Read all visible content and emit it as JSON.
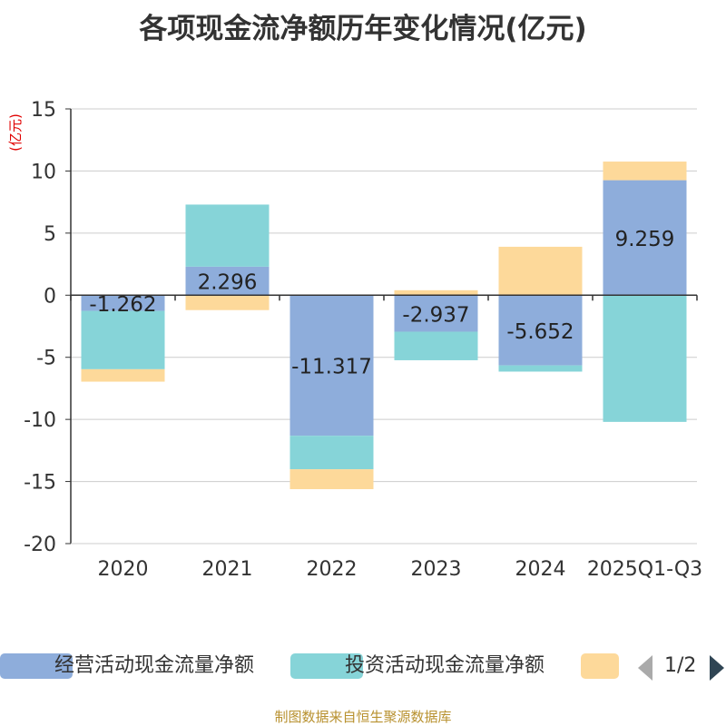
{
  "title": "各项现金流净额历年变化情况(亿元)",
  "source": "制图数据来自恒生聚源数据库",
  "pager": "1/2",
  "colors": {
    "operating": "#8eaddb",
    "investing": "#86d4d8",
    "financing": "#fdd99a",
    "grid": "#cccccc",
    "axis": "#333333",
    "text": "#333333",
    "unit": "#e00000",
    "pager_active": "#2f4554",
    "pager_inactive": "#aaaaaa"
  },
  "chart_data": {
    "type": "bar",
    "stacked": true,
    "title": "各项现金流净额历年变化情况(亿元)",
    "ylabel": "(亿元)",
    "ylim": [
      -20,
      15
    ],
    "yticks": [
      15,
      10,
      5,
      0,
      -5,
      -10,
      -15,
      -20
    ],
    "categories": [
      "2020",
      "2021",
      "2022",
      "2023",
      "2024",
      "2025Q1-Q3"
    ],
    "series": [
      {
        "name": "经营活动现金流量净额",
        "key": "operating",
        "values": [
          -1.262,
          2.296,
          -11.317,
          -2.937,
          -5.652,
          9.259
        ],
        "labels": [
          "-1.262",
          "2.296",
          "-11.317",
          "-2.937",
          "-5.652",
          "9.259"
        ]
      },
      {
        "name": "投资活动现金流量净额",
        "key": "investing",
        "values": [
          -4.7,
          5.0,
          -2.7,
          -2.3,
          -0.5,
          -10.2
        ]
      },
      {
        "name": "",
        "key": "financing",
        "values": [
          -1.0,
          -1.2,
          -1.6,
          0.4,
          3.9,
          1.5
        ]
      }
    ],
    "legend_position": "bottom"
  }
}
